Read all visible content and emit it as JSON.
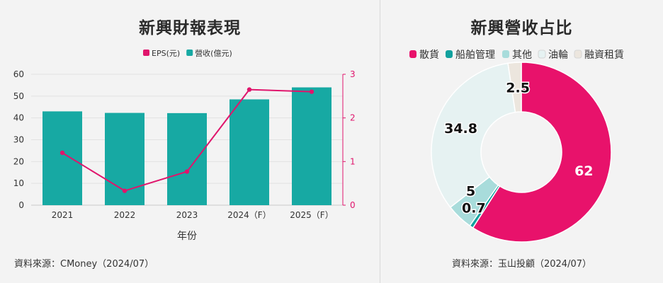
{
  "left_panel": {
    "source": "資料來源：CMoney（2024/07）"
  },
  "right_panel": {
    "source": "資料來源：玉山投顧（2024/07）"
  },
  "chart_data": [
    {
      "type": "bar",
      "title": "新興財報表現",
      "xlabel": "年份",
      "categories": [
        "2021",
        "2022",
        "2023",
        "2024（F）",
        "2025（F）"
      ],
      "series": [
        {
          "name": "營收(億元)",
          "type": "bar",
          "axis": "left",
          "values": [
            43,
            42.3,
            42.2,
            48.5,
            54
          ],
          "color": "#17a9a3"
        },
        {
          "name": "EPS(元)",
          "type": "line",
          "axis": "right",
          "values": [
            1.2,
            0.33,
            0.77,
            2.65,
            2.6
          ],
          "color": "#e0156c"
        }
      ],
      "ylim": [
        0,
        60
      ],
      "yticks": [
        "0",
        "10",
        "20",
        "30",
        "40",
        "50",
        "60"
      ],
      "y2lim": [
        0,
        3
      ],
      "y2ticks": [
        "0",
        "1",
        "2",
        "3"
      ],
      "legend_position": "top-center",
      "grid": true
    },
    {
      "type": "pie",
      "title": "新興營收占比",
      "donut": true,
      "slices": [
        {
          "label": "散貨",
          "value": 62,
          "display": "62",
          "color": "#e8126b"
        },
        {
          "label": "船舶管理",
          "value": 0.7,
          "display": "0.7",
          "color": "#12a19e"
        },
        {
          "label": "其他",
          "value": 5,
          "display": "5",
          "color": "#a8dcdb"
        },
        {
          "label": "油輪",
          "value": 34.8,
          "display": "34.8",
          "color": "#e6f2f2"
        },
        {
          "label": "融資租賃",
          "value": 2.5,
          "display": "2.5",
          "color": "#ece6de"
        }
      ],
      "legend_position": "top-center"
    }
  ]
}
